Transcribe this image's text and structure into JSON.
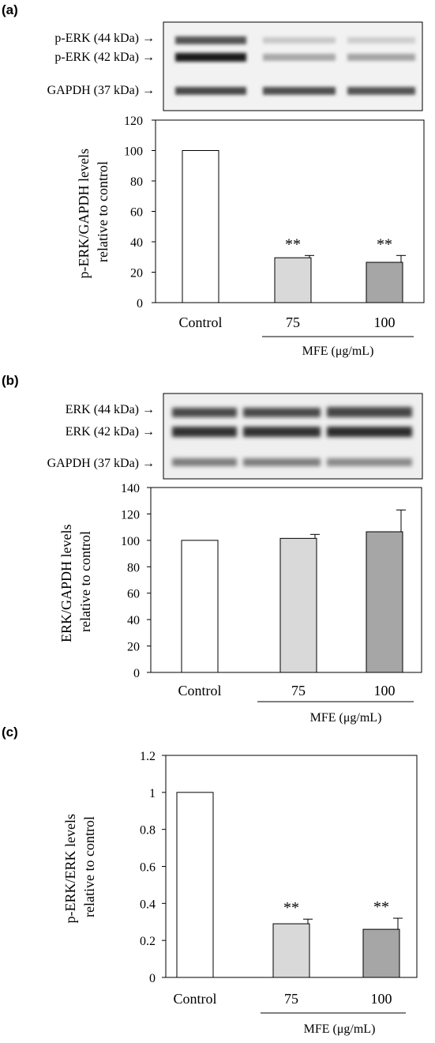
{
  "colors": {
    "control": "#ffffff",
    "dose75": "#d9d9d9",
    "dose100": "#a6a6a6",
    "axis": "#000000"
  },
  "panels": [
    {
      "letter": "(a)",
      "blot_labels": [
        "p-ERK (44 kDa) →",
        "p-ERK (42 kDa) →",
        "GAPDH (37 kDa) →"
      ],
      "group_label": "MFE (μg/mL)"
    },
    {
      "letter": "(b)",
      "blot_labels": [
        "ERK (44 kDa) →",
        "ERK (42 kDa) →",
        "GAPDH (37 kDa) →"
      ],
      "group_label": "MFE (μg/mL)"
    },
    {
      "letter": "(c)",
      "blot_labels": [],
      "group_label": "MFE (μg/mL)"
    }
  ],
  "chart_data": [
    {
      "type": "bar",
      "categories": [
        "Control",
        "75",
        "100"
      ],
      "values": [
        100,
        29.5,
        26.5
      ],
      "errors": [
        0,
        1.5,
        4.5
      ],
      "annotations": [
        "",
        "**",
        "**"
      ],
      "ylabel": [
        "p-ERK/GAPDH levels",
        "relative to control"
      ],
      "ylim": [
        0,
        120
      ],
      "yticks": [
        "0",
        "20",
        "40",
        "60",
        "80",
        "100",
        "120"
      ]
    },
    {
      "type": "bar",
      "categories": [
        "Control",
        "75",
        "100"
      ],
      "values": [
        100,
        101.5,
        106.5
      ],
      "errors": [
        0,
        3.0,
        16.5
      ],
      "annotations": [
        "",
        "",
        ""
      ],
      "ylabel": [
        "ERK/GAPDH levels",
        "relative to control"
      ],
      "ylim": [
        0,
        140
      ],
      "yticks": [
        "0",
        "20",
        "40",
        "60",
        "80",
        "100",
        "120",
        "140"
      ]
    },
    {
      "type": "bar",
      "categories": [
        "Control",
        "75",
        "100"
      ],
      "values": [
        1.0,
        0.29,
        0.26
      ],
      "errors": [
        0,
        0.025,
        0.06
      ],
      "annotations": [
        "",
        "**",
        "**"
      ],
      "ylabel": [
        "p-ERK/ERK levels",
        "relative to control"
      ],
      "ylim": [
        0,
        1.2
      ],
      "yticks": [
        "0",
        "0.2",
        "0.4",
        "0.6",
        "0.8",
        "1",
        "1.2"
      ]
    }
  ]
}
